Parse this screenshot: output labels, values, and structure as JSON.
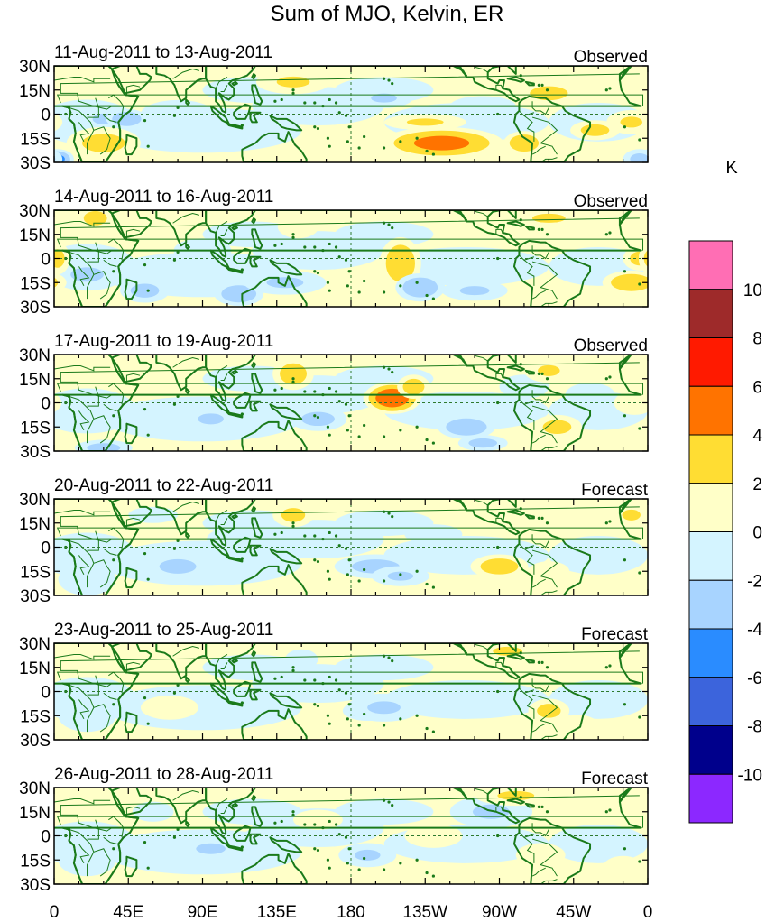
{
  "chart_data": {
    "type": "heatmap",
    "title": "Sum of MJO, Kelvin, ER",
    "colorbar": {
      "unit": "K",
      "labels": [
        "10",
        "8",
        "6",
        "4",
        "2",
        "0",
        "-2",
        "-4",
        "-6",
        "-8",
        "-10"
      ],
      "levels": [
        10,
        8,
        6,
        4,
        2,
        0,
        -2,
        -4,
        -6,
        -8,
        -10
      ],
      "colors": [
        "#ff6eb4",
        "#9e2a2a",
        "#ff1a00",
        "#ff7300",
        "#ffdd33",
        "#ffffc8",
        "#d4f4ff",
        "#a8d4ff",
        "#2a8cff",
        "#3c64dc",
        "#00008c",
        "#8c28ff"
      ]
    },
    "x_tick_labels": [
      "0",
      "45E",
      "90E",
      "135E",
      "180",
      "135W",
      "90W",
      "45W",
      "0"
    ],
    "y_tick_labels": [
      "30N",
      "15N",
      "0",
      "15S",
      "30S"
    ],
    "xlim": [
      0,
      360
    ],
    "ylim": [
      -30,
      30
    ],
    "panels": [
      {
        "period": "11-Aug-2011 to 13-Aug-2011",
        "label": "Observed",
        "blobs": [
          [
            145,
            20,
            18,
            6,
            2.5
          ],
          [
            200,
            10,
            14,
            5,
            -2.5
          ],
          [
            235,
            -18,
            30,
            8,
            5
          ],
          [
            225,
            -5,
            20,
            4,
            2.5
          ],
          [
            285,
            -18,
            10,
            6,
            4
          ],
          [
            300,
            13,
            16,
            6,
            3
          ],
          [
            328,
            -10,
            12,
            5,
            3
          ],
          [
            350,
            -5,
            12,
            6,
            2.5
          ],
          [
            30,
            -3,
            12,
            6,
            -2.5
          ],
          [
            44,
            -3,
            10,
            5,
            -4
          ],
          [
            75,
            0,
            18,
            7,
            -2
          ],
          [
            30,
            -18,
            18,
            8,
            3
          ],
          [
            175,
            -22,
            18,
            6,
            2
          ],
          [
            260,
            5,
            16,
            5,
            -2
          ],
          [
            2,
            -28,
            8,
            5,
            -5
          ],
          [
            355,
            -28,
            8,
            5,
            -3
          ],
          [
            120,
            -5,
            16,
            6,
            -2
          ]
        ]
      },
      {
        "period": "14-Aug-2011 to 16-Aug-2011",
        "label": "Observed",
        "blobs": [
          [
            20,
            -10,
            18,
            8,
            -2.5
          ],
          [
            55,
            -20,
            12,
            6,
            -3
          ],
          [
            112,
            -22,
            12,
            6,
            -4
          ],
          [
            140,
            -15,
            20,
            6,
            -2.5
          ],
          [
            210,
            -3,
            10,
            13,
            4
          ],
          [
            222,
            -18,
            12,
            7,
            -4
          ],
          [
            175,
            5,
            14,
            6,
            -2
          ],
          [
            148,
            20,
            10,
            6,
            2
          ],
          [
            255,
            -20,
            16,
            5,
            -2.5
          ],
          [
            275,
            -5,
            12,
            5,
            -2
          ],
          [
            350,
            -15,
            14,
            6,
            4
          ],
          [
            355,
            0,
            8,
            6,
            3
          ],
          [
            25,
            25,
            8,
            5,
            4
          ],
          [
            2,
            0,
            6,
            8,
            3
          ],
          [
            300,
            25,
            18,
            5,
            2.5
          ],
          [
            175,
            -25,
            16,
            4,
            2
          ],
          [
            90,
            5,
            14,
            6,
            -2
          ]
        ]
      },
      {
        "period": "17-Aug-2011 to 19-Aug-2011",
        "label": "Observed",
        "blobs": [
          [
            205,
            3,
            14,
            8,
            6
          ],
          [
            218,
            10,
            8,
            6,
            3.5
          ],
          [
            145,
            18,
            10,
            8,
            3.5
          ],
          [
            130,
            0,
            16,
            6,
            -2
          ],
          [
            160,
            -10,
            14,
            6,
            -3
          ],
          [
            250,
            -15,
            14,
            6,
            -4
          ],
          [
            260,
            -25,
            12,
            4,
            -3
          ],
          [
            95,
            -10,
            14,
            6,
            -2.5
          ],
          [
            305,
            -15,
            12,
            6,
            3
          ],
          [
            285,
            10,
            12,
            6,
            -2
          ],
          [
            325,
            5,
            12,
            6,
            -2
          ],
          [
            352,
            0,
            10,
            6,
            2
          ],
          [
            30,
            -28,
            14,
            4,
            -3
          ],
          [
            300,
            20,
            12,
            6,
            2.5
          ],
          [
            60,
            18,
            10,
            5,
            2
          ],
          [
            5,
            25,
            10,
            4,
            2
          ]
        ]
      },
      {
        "period": "20-Aug-2011 to 22-Aug-2011",
        "label": "Forecast",
        "blobs": [
          [
            145,
            20,
            10,
            6,
            3
          ],
          [
            195,
            -12,
            20,
            6,
            -3
          ],
          [
            210,
            -18,
            14,
            5,
            -2.5
          ],
          [
            270,
            -12,
            14,
            6,
            3.5
          ],
          [
            300,
            -15,
            10,
            5,
            2
          ],
          [
            75,
            -12,
            20,
            8,
            -2.5
          ],
          [
            110,
            5,
            14,
            6,
            -2
          ],
          [
            20,
            -20,
            14,
            8,
            -2
          ],
          [
            230,
            8,
            14,
            5,
            -2
          ],
          [
            255,
            20,
            12,
            5,
            2
          ],
          [
            350,
            20,
            10,
            6,
            2.5
          ],
          [
            60,
            20,
            12,
            4,
            -1.5
          ]
        ]
      },
      {
        "period": "23-Aug-2011 to 25-Aug-2011",
        "label": "Forecast",
        "blobs": [
          [
            190,
            -12,
            12,
            5,
            -4.5
          ],
          [
            200,
            -10,
            18,
            7,
            -2.5
          ],
          [
            300,
            -12,
            10,
            6,
            3
          ],
          [
            318,
            -22,
            10,
            6,
            2
          ],
          [
            275,
            25,
            16,
            5,
            2.5
          ],
          [
            20,
            -15,
            14,
            8,
            -2
          ],
          [
            115,
            -5,
            14,
            6,
            -2
          ],
          [
            240,
            -5,
            14,
            6,
            -1.5
          ],
          [
            70,
            -10,
            14,
            6,
            1
          ],
          [
            350,
            15,
            8,
            5,
            2
          ],
          [
            150,
            20,
            8,
            5,
            -1.5
          ]
        ]
      },
      {
        "period": "26-Aug-2011 to 28-Aug-2011",
        "label": "Forecast",
        "blobs": [
          [
            265,
            15,
            20,
            8,
            -2.5
          ],
          [
            280,
            25,
            20,
            5,
            2.5
          ],
          [
            190,
            -12,
            14,
            6,
            -2.5
          ],
          [
            95,
            -8,
            16,
            6,
            -2.5
          ],
          [
            130,
            -2,
            14,
            6,
            -2
          ],
          [
            295,
            -12,
            12,
            6,
            2
          ],
          [
            310,
            -25,
            10,
            5,
            2
          ],
          [
            20,
            -15,
            14,
            8,
            -2
          ],
          [
            160,
            10,
            12,
            5,
            1.5
          ],
          [
            230,
            0,
            14,
            6,
            1
          ],
          [
            345,
            -20,
            10,
            6,
            1.5
          ],
          [
            60,
            15,
            10,
            5,
            -1.5
          ]
        ]
      }
    ]
  }
}
